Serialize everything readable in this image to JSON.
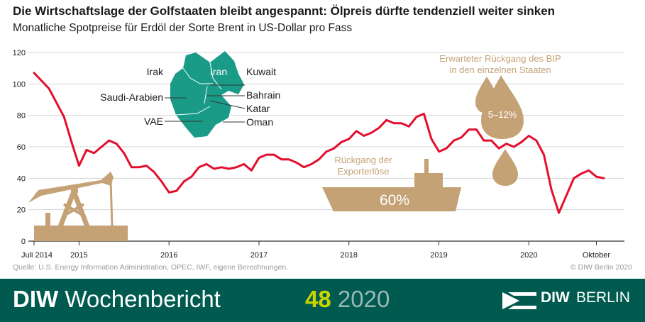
{
  "header": {
    "title": "Die Wirtschaftslage der Golfstaaten bleibt angespannt: Ölpreis dürfte tendenziell weiter sinken",
    "subtitle": "Monatliche Spotpreise für Erdöl der Sorte Brent in US-Dollar pro Fass"
  },
  "chart_data": {
    "type": "line",
    "title": "Die Wirtschaftslage der Golfstaaten bleibt angespannt: Ölpreis dürfte tendenziell weiter sinken",
    "subtitle": "Monatliche Spotpreise für Erdöl der Sorte Brent in US-Dollar pro Fass",
    "ylim": [
      0,
      120
    ],
    "yticks": [
      0,
      20,
      40,
      60,
      80,
      100,
      120
    ],
    "xticks": [
      {
        "label": "Juli 2014",
        "month": "2014-07"
      },
      {
        "label": "2015",
        "month": "2015-01"
      },
      {
        "label": "2016",
        "month": "2016-01"
      },
      {
        "label": "2017",
        "month": "2017-01"
      },
      {
        "label": "2018",
        "month": "2018-01"
      },
      {
        "label": "2019",
        "month": "2019-01"
      },
      {
        "label": "2020",
        "month": "2020-01"
      },
      {
        "label": "Oktober",
        "month": "2020-10"
      }
    ],
    "grid": true,
    "series": [
      {
        "color": "#e30f2d",
        "start_month": "2014-07",
        "values": [
          107,
          102,
          97,
          88,
          79,
          63,
          48,
          58,
          56,
          60,
          64,
          62,
          56,
          47,
          47,
          48,
          44,
          38,
          31,
          32,
          38,
          41,
          47,
          49,
          46,
          47,
          46,
          47,
          49,
          45,
          53,
          55,
          55,
          52,
          52,
          50,
          47,
          49,
          52,
          57,
          59,
          63,
          65,
          70,
          67,
          69,
          72,
          77,
          75,
          75,
          73,
          79,
          81,
          65,
          57,
          59,
          64,
          66,
          71,
          71,
          64,
          64,
          59,
          62,
          60,
          63,
          67,
          64,
          55,
          33,
          18,
          29,
          40,
          43,
          45,
          41,
          40
        ]
      }
    ],
    "annotations": {
      "map_labels": [
        "Irak",
        "Iran",
        "Kuwait",
        "Saudi-Arabien",
        "Bahrain",
        "Katar",
        "VAE",
        "Oman"
      ],
      "bip_label_1": "Erwarteter Rückgang des BIP",
      "bip_label_2": "in den einzelnen Staaten",
      "bip_value": "5–12%",
      "export_label_1": "Rückgang der",
      "export_label_2": "Exporterlöse",
      "export_value": "60%"
    }
  },
  "source": "Quelle: U.S. Energy Information Administration, OPEC, IWF, eigene Berechnungen.",
  "copyright": "© DIW Berlin 2020",
  "footer": {
    "brand_bold": "DIW",
    "brand_rest": "Wochenbericht",
    "issue_number": "48",
    "issue_year": "2020",
    "logo_diw": "DIW",
    "logo_berlin": "BERLIN"
  },
  "colors": {
    "line": "#e30f2d",
    "illustration": "#c4a276",
    "map": "#1a9b87",
    "footer": "#005a4f",
    "issue_number": "#c9d400"
  }
}
